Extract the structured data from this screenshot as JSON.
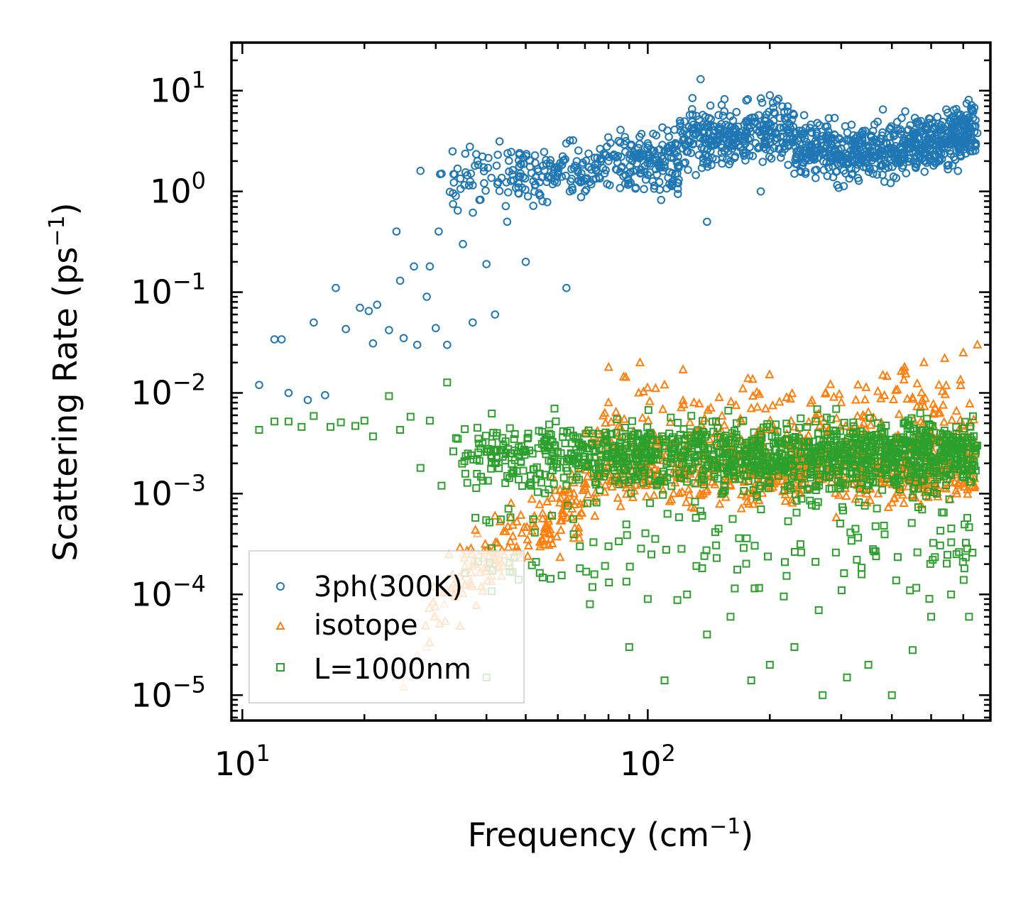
{
  "chart_data": {
    "type": "scatter",
    "xscale": "log",
    "yscale": "log",
    "xlim": [
      9.4,
      700
    ],
    "ylim": [
      5.6e-06,
      30
    ],
    "xlabel": "Frequency (cm$^{-1}$)",
    "xlabel_parts": {
      "base": "Frequency (cm",
      "sup": "−1",
      "tail": ")"
    },
    "ylabel": "Scattering Rate (ps$^{-1}$)",
    "ylabel_parts": {
      "base": "Scattering Rate (ps",
      "sup": "−1",
      "tail": ")"
    },
    "x_ticks": [
      {
        "value": 10,
        "base": "10",
        "exp": "1"
      },
      {
        "value": 100,
        "base": "10",
        "exp": "2"
      }
    ],
    "y_ticks": [
      {
        "value": 10,
        "base": "10",
        "exp": "1"
      },
      {
        "value": 1,
        "base": "10",
        "exp": "0"
      },
      {
        "value": 0.1,
        "base": "10",
        "exp": "−1"
      },
      {
        "value": 0.01,
        "base": "10",
        "exp": "−2"
      },
      {
        "value": 0.001,
        "base": "10",
        "exp": "−3"
      },
      {
        "value": 0.0001,
        "base": "10",
        "exp": "−4"
      },
      {
        "value": 1e-05,
        "base": "10",
        "exp": "−5"
      }
    ],
    "legend": {
      "position": "lower-left"
    },
    "series": [
      {
        "name": "3ph(300K)",
        "marker": "circle",
        "color": "#1f77b4",
        "sample_points": [
          [
            11,
            0.012
          ],
          [
            12,
            0.034
          ],
          [
            12.5,
            0.034
          ],
          [
            13,
            0.01
          ],
          [
            14.5,
            0.0085
          ],
          [
            15,
            0.05
          ],
          [
            16,
            0.0095
          ],
          [
            17,
            0.11
          ],
          [
            18,
            0.043
          ],
          [
            19.5,
            0.07
          ],
          [
            20.5,
            0.065
          ],
          [
            21,
            0.031
          ],
          [
            21.5,
            0.075
          ],
          [
            23,
            0.042
          ],
          [
            24,
            0.4
          ],
          [
            24.5,
            0.13
          ],
          [
            25,
            0.035
          ],
          [
            26.5,
            0.18
          ],
          [
            27,
            0.03
          ],
          [
            27.5,
            1.6
          ],
          [
            28.5,
            0.09
          ],
          [
            29,
            0.18
          ],
          [
            30,
            0.044
          ],
          [
            30.5,
            0.4
          ],
          [
            31,
            1.5
          ],
          [
            32,
            0.03
          ],
          [
            33,
            2.5
          ],
          [
            35,
            0.3
          ],
          [
            37,
            0.05
          ],
          [
            38,
            2.0
          ],
          [
            40,
            0.19
          ],
          [
            42,
            0.06
          ],
          [
            45,
            0.5
          ],
          [
            48,
            1.2
          ],
          [
            50,
            0.2
          ],
          [
            55,
            0.8
          ],
          [
            60,
            1.5
          ],
          [
            63,
            0.11
          ],
          [
            70,
            1.0
          ],
          [
            80,
            2.0
          ],
          [
            90,
            1.5
          ],
          [
            100,
            3.0
          ],
          [
            110,
            2.5
          ],
          [
            120,
            5.0
          ],
          [
            135,
            13.0
          ],
          [
            140,
            0.5
          ],
          [
            150,
            4.0
          ],
          [
            160,
            2.0
          ],
          [
            175,
            8.0
          ],
          [
            190,
            1.0
          ],
          [
            200,
            9.0
          ],
          [
            215,
            3.0
          ],
          [
            230,
            1.5
          ],
          [
            260,
            3.0
          ],
          [
            290,
            2.5
          ],
          [
            320,
            1.5
          ],
          [
            360,
            2.5
          ],
          [
            380,
            1.8
          ],
          [
            420,
            2.8
          ],
          [
            480,
            3.5
          ],
          [
            560,
            4.2
          ],
          [
            620,
            4.0
          ],
          [
            650,
            3.8
          ]
        ]
      },
      {
        "name": "isotope",
        "marker": "triangle",
        "color": "#ff7f0e",
        "sample_points": [
          [
            25,
            1.2e-05
          ],
          [
            27,
            2.5e-05
          ],
          [
            28.5,
            3e-05
          ],
          [
            30,
            6e-05
          ],
          [
            31.5,
            8e-05
          ],
          [
            33,
            0.00012
          ],
          [
            35,
            0.00025
          ],
          [
            38,
            0.0004
          ],
          [
            42,
            0.0006
          ],
          [
            46,
            0.0008
          ],
          [
            52,
            0.0005
          ],
          [
            58,
            0.0009
          ],
          [
            64,
            0.0011
          ],
          [
            70,
            0.004
          ],
          [
            80,
            0.008
          ],
          [
            95,
            0.01
          ],
          [
            110,
            0.012
          ],
          [
            130,
            0.008
          ],
          [
            150,
            0.009
          ],
          [
            180,
            0.007
          ],
          [
            220,
            0.009
          ],
          [
            260,
            0.006
          ],
          [
            300,
            0.008
          ],
          [
            330,
            0.012
          ],
          [
            380,
            0.015
          ],
          [
            430,
            0.018
          ],
          [
            480,
            0.02
          ],
          [
            540,
            0.022
          ],
          [
            600,
            0.025
          ],
          [
            650,
            0.03
          ]
        ]
      },
      {
        "name": "L=1000nm",
        "marker": "square",
        "color": "#2ca02c",
        "sample_points": [
          [
            11,
            0.0043
          ],
          [
            12,
            0.0052
          ],
          [
            13,
            0.0052
          ],
          [
            14,
            0.0046
          ],
          [
            15,
            0.0059
          ],
          [
            16.5,
            0.0046
          ],
          [
            17.5,
            0.0051
          ],
          [
            19,
            0.0047
          ],
          [
            20,
            0.0053
          ],
          [
            21,
            0.0037
          ],
          [
            23,
            0.0093
          ],
          [
            24.5,
            0.0043
          ],
          [
            26,
            0.0058
          ],
          [
            27.5,
            0.0018
          ],
          [
            29,
            0.0053
          ],
          [
            31,
            0.0012
          ],
          [
            32,
            0.0127
          ],
          [
            34,
            0.0035
          ],
          [
            36,
            0.0025
          ],
          [
            38,
            0.0045
          ],
          [
            40,
            1.5e-05
          ],
          [
            42,
            0.002
          ],
          [
            45,
            0.0015
          ],
          [
            48,
            0.00014
          ],
          [
            52,
            0.0025
          ],
          [
            57,
            0.0011
          ],
          [
            63,
            0.0012
          ],
          [
            68,
            0.0003
          ],
          [
            72,
            8e-05
          ],
          [
            80,
            0.0003
          ],
          [
            90,
            3e-05
          ],
          [
            100,
            9e-05
          ],
          [
            110,
            1.4e-05
          ],
          [
            125,
            0.0001
          ],
          [
            140,
            4e-05
          ],
          [
            160,
            6e-05
          ],
          [
            180,
            1.4e-05
          ],
          [
            200,
            2e-05
          ],
          [
            230,
            3e-05
          ],
          [
            270,
            1e-05
          ],
          [
            310,
            1.5e-05
          ],
          [
            350,
            2e-05
          ],
          [
            400,
            1e-05
          ],
          [
            450,
            2.8e-05
          ],
          [
            500,
            6e-05
          ],
          [
            560,
            0.0001
          ],
          [
            620,
            6e-05
          ],
          [
            650,
            0.003
          ]
        ]
      }
    ]
  }
}
